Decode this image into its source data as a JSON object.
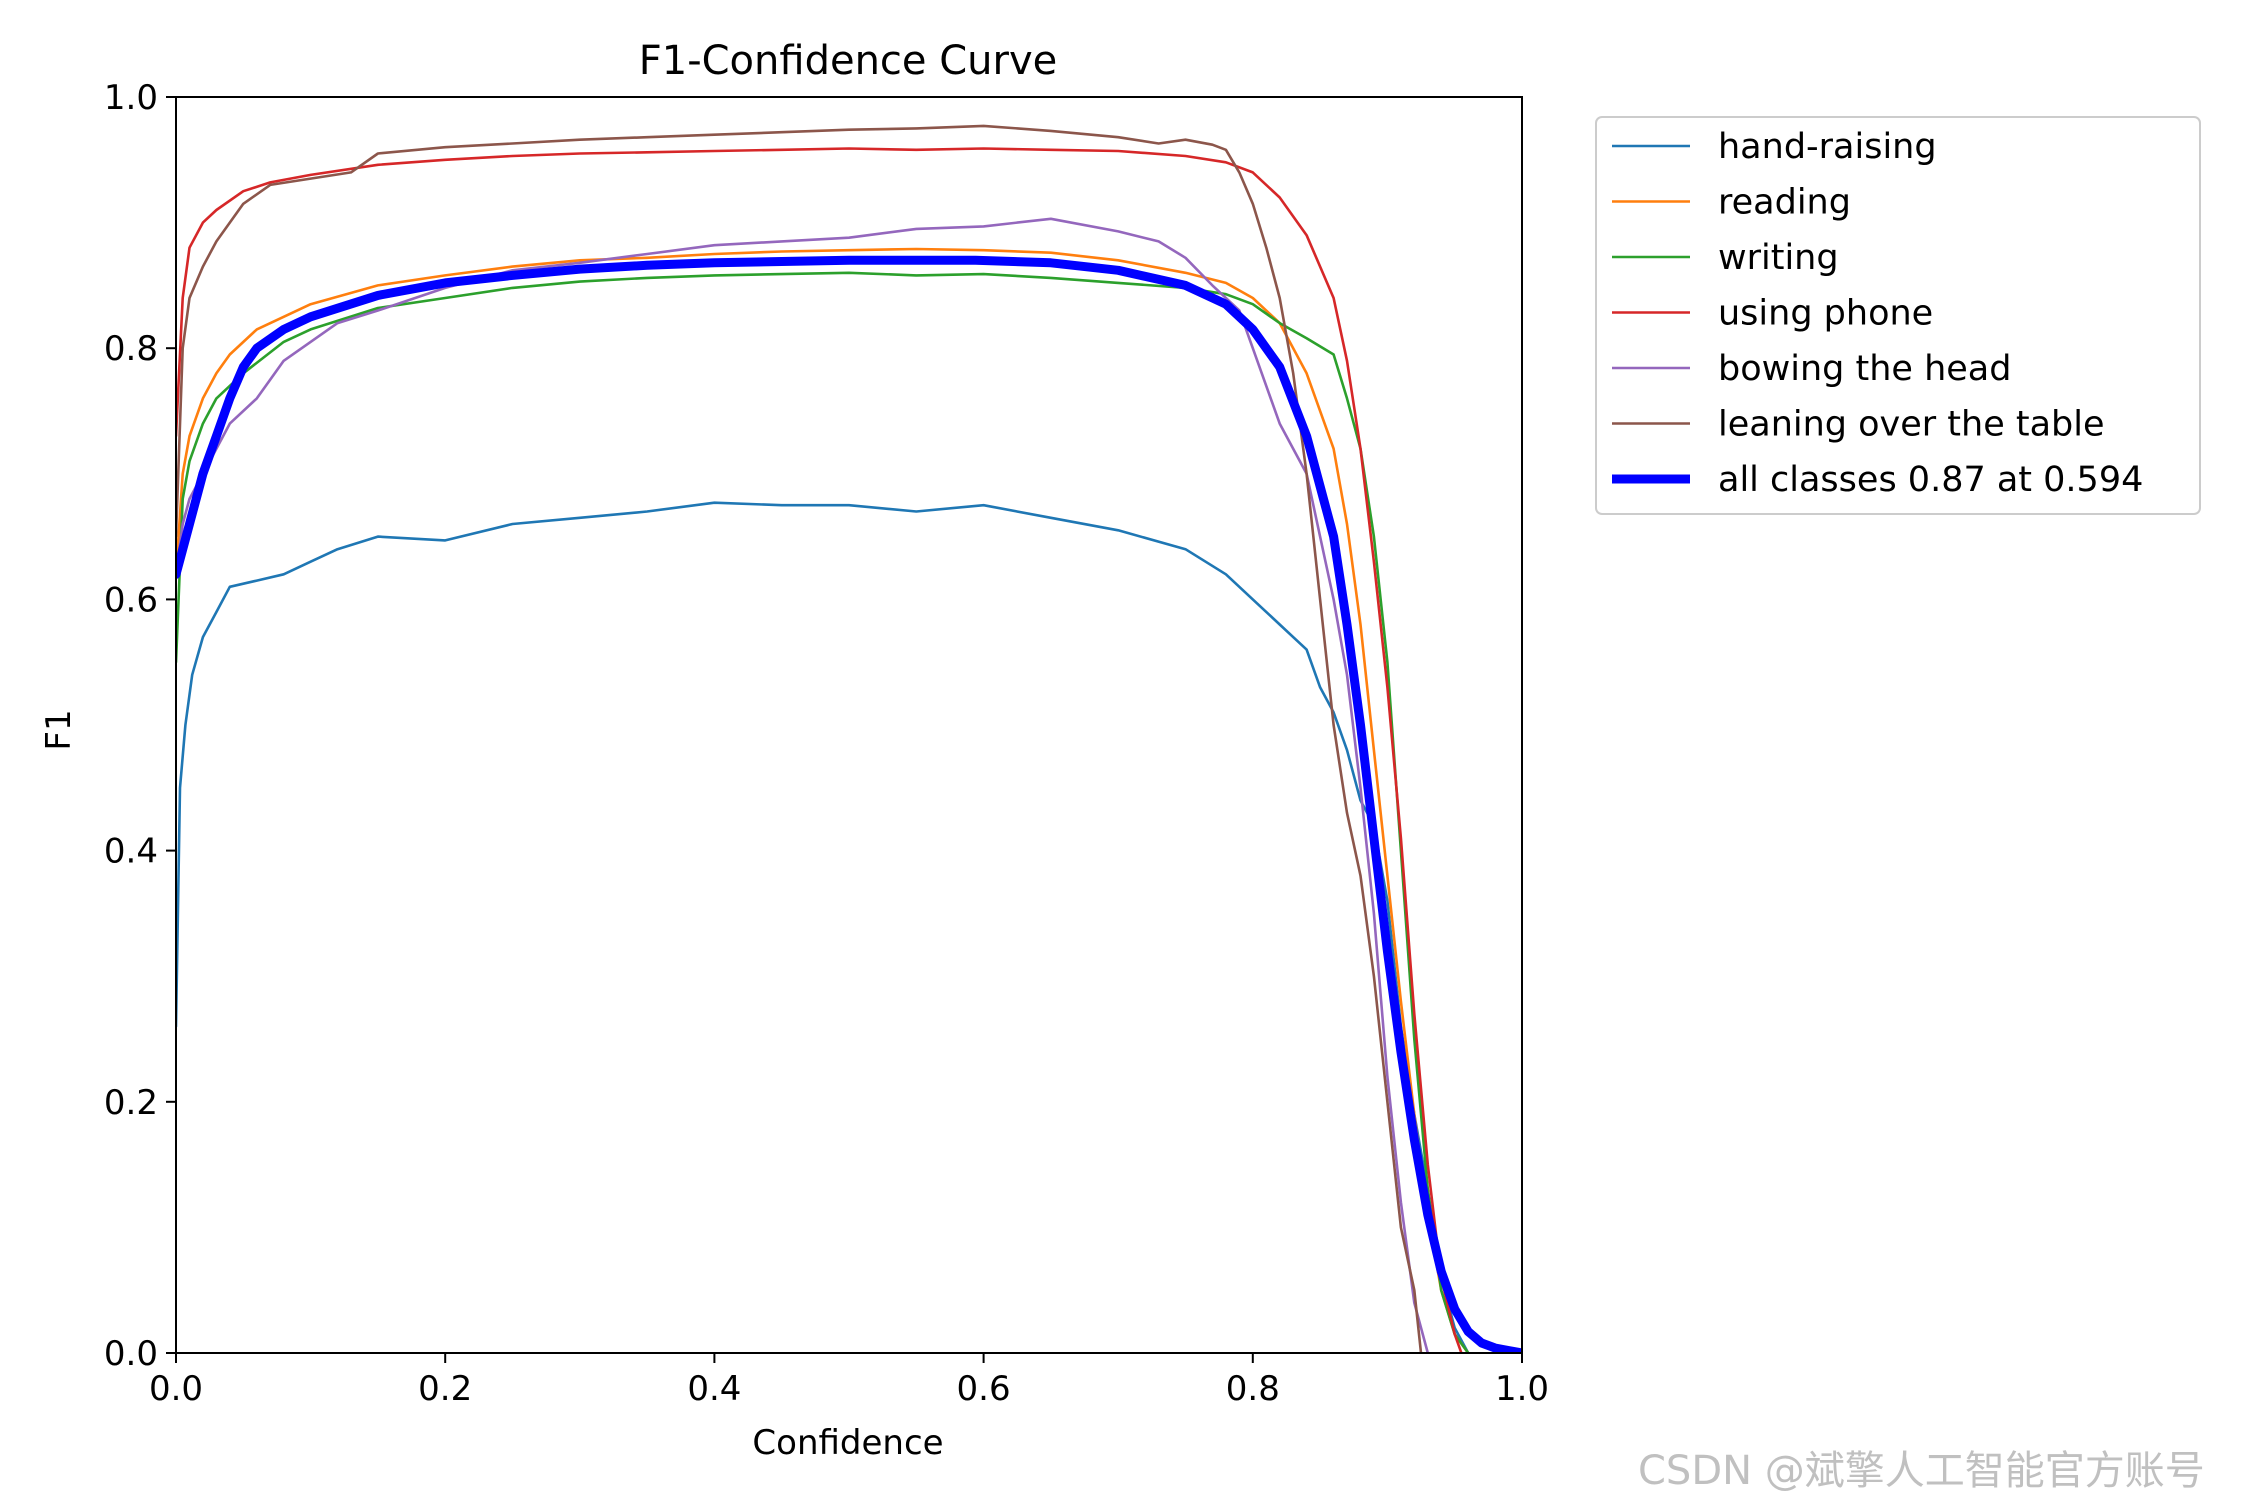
{
  "watermark": "CSDN @斌擎人工智能官方账号",
  "chart_data": {
    "type": "line",
    "title": "F1-Confidence Curve",
    "xlabel": "Confidence",
    "ylabel": "F1",
    "xlim": [
      0.0,
      1.0
    ],
    "ylim": [
      0.0,
      1.0
    ],
    "xticks": [
      "0.0",
      "0.2",
      "0.4",
      "0.6",
      "0.8",
      "1.0"
    ],
    "yticks": [
      "0.0",
      "0.2",
      "0.4",
      "0.6",
      "0.8",
      "1.0"
    ],
    "grid": false,
    "legend_position": "outside-top-right",
    "series": [
      {
        "name": "hand-raising",
        "color": "#1f77b4",
        "width": "thin",
        "points": [
          [
            0.0,
            0.26
          ],
          [
            0.003,
            0.45
          ],
          [
            0.007,
            0.5
          ],
          [
            0.012,
            0.54
          ],
          [
            0.02,
            0.57
          ],
          [
            0.03,
            0.59
          ],
          [
            0.04,
            0.61
          ],
          [
            0.06,
            0.615
          ],
          [
            0.08,
            0.62
          ],
          [
            0.1,
            0.63
          ],
          [
            0.12,
            0.64
          ],
          [
            0.15,
            0.65
          ],
          [
            0.2,
            0.647
          ],
          [
            0.25,
            0.66
          ],
          [
            0.3,
            0.665
          ],
          [
            0.35,
            0.67
          ],
          [
            0.4,
            0.677
          ],
          [
            0.45,
            0.675
          ],
          [
            0.5,
            0.675
          ],
          [
            0.55,
            0.67
          ],
          [
            0.6,
            0.675
          ],
          [
            0.65,
            0.665
          ],
          [
            0.7,
            0.655
          ],
          [
            0.75,
            0.64
          ],
          [
            0.78,
            0.62
          ],
          [
            0.8,
            0.6
          ],
          [
            0.82,
            0.58
          ],
          [
            0.84,
            0.56
          ],
          [
            0.85,
            0.53
          ],
          [
            0.86,
            0.51
          ],
          [
            0.87,
            0.48
          ],
          [
            0.88,
            0.44
          ],
          [
            0.89,
            0.42
          ],
          [
            0.9,
            0.36
          ],
          [
            0.91,
            0.26
          ],
          [
            0.92,
            0.19
          ],
          [
            0.93,
            0.13
          ],
          [
            0.94,
            0.06
          ],
          [
            0.95,
            0.02
          ],
          [
            0.96,
            0.0
          ]
        ]
      },
      {
        "name": "reading",
        "color": "#ff7f0e",
        "width": "thin",
        "points": [
          [
            0.0,
            0.62
          ],
          [
            0.005,
            0.7
          ],
          [
            0.01,
            0.73
          ],
          [
            0.02,
            0.76
          ],
          [
            0.03,
            0.78
          ],
          [
            0.04,
            0.795
          ],
          [
            0.06,
            0.815
          ],
          [
            0.08,
            0.825
          ],
          [
            0.1,
            0.835
          ],
          [
            0.15,
            0.85
          ],
          [
            0.2,
            0.858
          ],
          [
            0.25,
            0.865
          ],
          [
            0.3,
            0.87
          ],
          [
            0.35,
            0.872
          ],
          [
            0.4,
            0.875
          ],
          [
            0.45,
            0.877
          ],
          [
            0.5,
            0.878
          ],
          [
            0.55,
            0.879
          ],
          [
            0.6,
            0.878
          ],
          [
            0.65,
            0.876
          ],
          [
            0.7,
            0.87
          ],
          [
            0.75,
            0.86
          ],
          [
            0.78,
            0.852
          ],
          [
            0.8,
            0.84
          ],
          [
            0.82,
            0.82
          ],
          [
            0.84,
            0.78
          ],
          [
            0.86,
            0.72
          ],
          [
            0.87,
            0.66
          ],
          [
            0.88,
            0.58
          ],
          [
            0.89,
            0.48
          ],
          [
            0.9,
            0.38
          ],
          [
            0.91,
            0.28
          ],
          [
            0.92,
            0.19
          ],
          [
            0.93,
            0.11
          ],
          [
            0.94,
            0.05
          ],
          [
            0.95,
            0.015
          ],
          [
            0.96,
            0.0
          ]
        ]
      },
      {
        "name": "writing",
        "color": "#2ca02c",
        "width": "thin",
        "points": [
          [
            0.0,
            0.55
          ],
          [
            0.005,
            0.68
          ],
          [
            0.01,
            0.71
          ],
          [
            0.02,
            0.74
          ],
          [
            0.03,
            0.76
          ],
          [
            0.05,
            0.78
          ],
          [
            0.08,
            0.805
          ],
          [
            0.1,
            0.815
          ],
          [
            0.15,
            0.832
          ],
          [
            0.2,
            0.84
          ],
          [
            0.25,
            0.848
          ],
          [
            0.3,
            0.853
          ],
          [
            0.35,
            0.856
          ],
          [
            0.4,
            0.858
          ],
          [
            0.45,
            0.859
          ],
          [
            0.5,
            0.86
          ],
          [
            0.55,
            0.858
          ],
          [
            0.6,
            0.859
          ],
          [
            0.65,
            0.856
          ],
          [
            0.7,
            0.852
          ],
          [
            0.75,
            0.848
          ],
          [
            0.78,
            0.843
          ],
          [
            0.8,
            0.835
          ],
          [
            0.82,
            0.82
          ],
          [
            0.84,
            0.808
          ],
          [
            0.86,
            0.795
          ],
          [
            0.87,
            0.76
          ],
          [
            0.88,
            0.72
          ],
          [
            0.89,
            0.65
          ],
          [
            0.9,
            0.55
          ],
          [
            0.91,
            0.4
          ],
          [
            0.92,
            0.25
          ],
          [
            0.93,
            0.13
          ],
          [
            0.94,
            0.05
          ],
          [
            0.95,
            0.015
          ],
          [
            0.96,
            0.0
          ]
        ]
      },
      {
        "name": "using phone",
        "color": "#d62728",
        "width": "thin",
        "points": [
          [
            0.0,
            0.73
          ],
          [
            0.005,
            0.84
          ],
          [
            0.01,
            0.88
          ],
          [
            0.02,
            0.9
          ],
          [
            0.03,
            0.91
          ],
          [
            0.05,
            0.925
          ],
          [
            0.07,
            0.932
          ],
          [
            0.1,
            0.938
          ],
          [
            0.15,
            0.946
          ],
          [
            0.2,
            0.95
          ],
          [
            0.25,
            0.953
          ],
          [
            0.3,
            0.955
          ],
          [
            0.35,
            0.956
          ],
          [
            0.4,
            0.957
          ],
          [
            0.45,
            0.958
          ],
          [
            0.5,
            0.959
          ],
          [
            0.55,
            0.958
          ],
          [
            0.6,
            0.959
          ],
          [
            0.65,
            0.958
          ],
          [
            0.7,
            0.957
          ],
          [
            0.75,
            0.953
          ],
          [
            0.78,
            0.948
          ],
          [
            0.8,
            0.94
          ],
          [
            0.82,
            0.92
          ],
          [
            0.84,
            0.89
          ],
          [
            0.86,
            0.84
          ],
          [
            0.87,
            0.79
          ],
          [
            0.88,
            0.72
          ],
          [
            0.89,
            0.63
          ],
          [
            0.9,
            0.53
          ],
          [
            0.91,
            0.41
          ],
          [
            0.92,
            0.27
          ],
          [
            0.93,
            0.15
          ],
          [
            0.94,
            0.06
          ],
          [
            0.95,
            0.015
          ],
          [
            0.955,
            0.0
          ]
        ]
      },
      {
        "name": "bowing the head",
        "color": "#9467bd",
        "width": "thin",
        "points": [
          [
            0.0,
            0.62
          ],
          [
            0.005,
            0.66
          ],
          [
            0.01,
            0.68
          ],
          [
            0.02,
            0.7
          ],
          [
            0.03,
            0.72
          ],
          [
            0.04,
            0.74
          ],
          [
            0.06,
            0.76
          ],
          [
            0.08,
            0.79
          ],
          [
            0.1,
            0.805
          ],
          [
            0.12,
            0.82
          ],
          [
            0.15,
            0.83
          ],
          [
            0.2,
            0.848
          ],
          [
            0.25,
            0.862
          ],
          [
            0.3,
            0.868
          ],
          [
            0.35,
            0.875
          ],
          [
            0.4,
            0.882
          ],
          [
            0.45,
            0.885
          ],
          [
            0.5,
            0.888
          ],
          [
            0.55,
            0.895
          ],
          [
            0.6,
            0.897
          ],
          [
            0.65,
            0.903
          ],
          [
            0.7,
            0.893
          ],
          [
            0.73,
            0.885
          ],
          [
            0.75,
            0.872
          ],
          [
            0.77,
            0.85
          ],
          [
            0.79,
            0.83
          ],
          [
            0.8,
            0.8
          ],
          [
            0.82,
            0.74
          ],
          [
            0.84,
            0.7
          ],
          [
            0.85,
            0.65
          ],
          [
            0.86,
            0.6
          ],
          [
            0.87,
            0.54
          ],
          [
            0.88,
            0.45
          ],
          [
            0.89,
            0.35
          ],
          [
            0.9,
            0.22
          ],
          [
            0.91,
            0.12
          ],
          [
            0.92,
            0.04
          ],
          [
            0.93,
            0.0
          ]
        ]
      },
      {
        "name": "leaning over the table",
        "color": "#8c564b",
        "width": "thin",
        "points": [
          [
            0.0,
            0.65
          ],
          [
            0.005,
            0.8
          ],
          [
            0.01,
            0.84
          ],
          [
            0.02,
            0.865
          ],
          [
            0.03,
            0.885
          ],
          [
            0.04,
            0.9
          ],
          [
            0.05,
            0.915
          ],
          [
            0.07,
            0.93
          ],
          [
            0.1,
            0.935
          ],
          [
            0.13,
            0.94
          ],
          [
            0.15,
            0.955
          ],
          [
            0.2,
            0.96
          ],
          [
            0.25,
            0.963
          ],
          [
            0.3,
            0.966
          ],
          [
            0.35,
            0.968
          ],
          [
            0.4,
            0.97
          ],
          [
            0.45,
            0.972
          ],
          [
            0.5,
            0.974
          ],
          [
            0.55,
            0.975
          ],
          [
            0.6,
            0.977
          ],
          [
            0.65,
            0.973
          ],
          [
            0.7,
            0.968
          ],
          [
            0.73,
            0.963
          ],
          [
            0.75,
            0.966
          ],
          [
            0.77,
            0.962
          ],
          [
            0.78,
            0.958
          ],
          [
            0.79,
            0.94
          ],
          [
            0.8,
            0.915
          ],
          [
            0.81,
            0.88
          ],
          [
            0.82,
            0.84
          ],
          [
            0.83,
            0.78
          ],
          [
            0.84,
            0.7
          ],
          [
            0.85,
            0.6
          ],
          [
            0.86,
            0.5
          ],
          [
            0.87,
            0.43
          ],
          [
            0.88,
            0.38
          ],
          [
            0.89,
            0.3
          ],
          [
            0.9,
            0.2
          ],
          [
            0.91,
            0.1
          ],
          [
            0.92,
            0.05
          ],
          [
            0.925,
            0.0
          ]
        ]
      },
      {
        "name": "all classes 0.87 at 0.594",
        "color": "#0000ff",
        "width": "thick",
        "points": [
          [
            0.0,
            0.62
          ],
          [
            0.01,
            0.66
          ],
          [
            0.02,
            0.7
          ],
          [
            0.03,
            0.73
          ],
          [
            0.04,
            0.76
          ],
          [
            0.05,
            0.785
          ],
          [
            0.06,
            0.8
          ],
          [
            0.08,
            0.815
          ],
          [
            0.1,
            0.825
          ],
          [
            0.15,
            0.842
          ],
          [
            0.2,
            0.852
          ],
          [
            0.25,
            0.858
          ],
          [
            0.3,
            0.863
          ],
          [
            0.35,
            0.866
          ],
          [
            0.4,
            0.868
          ],
          [
            0.45,
            0.869
          ],
          [
            0.5,
            0.87
          ],
          [
            0.55,
            0.87
          ],
          [
            0.594,
            0.87
          ],
          [
            0.65,
            0.868
          ],
          [
            0.7,
            0.862
          ],
          [
            0.75,
            0.85
          ],
          [
            0.78,
            0.835
          ],
          [
            0.8,
            0.815
          ],
          [
            0.82,
            0.785
          ],
          [
            0.84,
            0.73
          ],
          [
            0.86,
            0.65
          ],
          [
            0.87,
            0.58
          ],
          [
            0.88,
            0.5
          ],
          [
            0.89,
            0.41
          ],
          [
            0.9,
            0.32
          ],
          [
            0.91,
            0.24
          ],
          [
            0.92,
            0.17
          ],
          [
            0.93,
            0.11
          ],
          [
            0.94,
            0.065
          ],
          [
            0.95,
            0.035
          ],
          [
            0.96,
            0.017
          ],
          [
            0.97,
            0.008
          ],
          [
            0.98,
            0.004
          ],
          [
            0.99,
            0.002
          ],
          [
            1.0,
            0.0
          ]
        ]
      }
    ]
  }
}
